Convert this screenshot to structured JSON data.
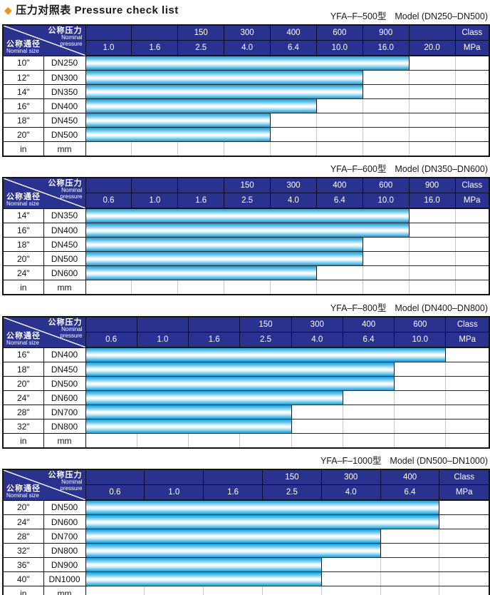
{
  "page_title": {
    "diamond": "◆",
    "cn": "压力对照表",
    "en": "Pressure check list"
  },
  "colors": {
    "header_bg": "#2a3290",
    "header_text": "#ffffff",
    "bar_cyan": "#1d9fd6",
    "bar_highlight": "#ffffff",
    "diamond_accent": "#f39019",
    "border_dark": "#141414",
    "grid_light": "#c9c9c9"
  },
  "corner": {
    "pressure_cn": "公称压力",
    "pressure_en1": "Nominal",
    "pressure_en2": "pressure",
    "size_cn": "公称通径",
    "size_en": "Nominal size"
  },
  "tables": [
    {
      "model_cn": "YFA–F–500型",
      "model_en": "Model (DN250–DN500)",
      "class_row": [
        "",
        "",
        "150",
        "300",
        "400",
        "600",
        "900",
        "",
        "Class"
      ],
      "mpa_row": [
        "1.0",
        "1.6",
        "2.5",
        "4.0",
        "6.4",
        "10.0",
        "16.0",
        "20.0",
        "MPa"
      ],
      "rows": [
        {
          "inch": "10\"",
          "dn": "DN250",
          "max_mpa": "16.0"
        },
        {
          "inch": "12\"",
          "dn": "DN300",
          "max_mpa": "10.0"
        },
        {
          "inch": "14\"",
          "dn": "DN350",
          "max_mpa": "10.0"
        },
        {
          "inch": "16\"",
          "dn": "DN400",
          "max_mpa": "6.4"
        },
        {
          "inch": "18\"",
          "dn": "DN450",
          "max_mpa": "4.0"
        },
        {
          "inch": "20\"",
          "dn": "DN500",
          "max_mpa": "4.0"
        }
      ],
      "footer": {
        "inch_unit": "in",
        "dn_unit": "mm"
      }
    },
    {
      "model_cn": "YFA–F–600型",
      "model_en": "Model (DN350–DN600)",
      "class_row": [
        "",
        "",
        "",
        "150",
        "300",
        "400",
        "600",
        "900",
        "Class"
      ],
      "mpa_row": [
        "0.6",
        "1.0",
        "1.6",
        "2.5",
        "4.0",
        "6.4",
        "10.0",
        "16.0",
        "MPa"
      ],
      "rows": [
        {
          "inch": "14\"",
          "dn": "DN350",
          "max_mpa": "10.0"
        },
        {
          "inch": "16\"",
          "dn": "DN400",
          "max_mpa": "10.0"
        },
        {
          "inch": "18\"",
          "dn": "DN450",
          "max_mpa": "6.4"
        },
        {
          "inch": "20\"",
          "dn": "DN500",
          "max_mpa": "6.4"
        },
        {
          "inch": "24\"",
          "dn": "DN600",
          "max_mpa": "4.0"
        }
      ],
      "footer": {
        "inch_unit": "in",
        "dn_unit": "mm"
      }
    },
    {
      "model_cn": "YFA–F–800型",
      "model_en": "Model (DN400–DN800)",
      "class_row": [
        "",
        "",
        "",
        "150",
        "300",
        "400",
        "600",
        "Class"
      ],
      "mpa_row": [
        "0.6",
        "1.0",
        "1.6",
        "2.5",
        "4.0",
        "6.4",
        "10.0",
        "MPa"
      ],
      "rows": [
        {
          "inch": "16\"",
          "dn": "DN400",
          "max_mpa": "10.0"
        },
        {
          "inch": "18\"",
          "dn": "DN450",
          "max_mpa": "6.4"
        },
        {
          "inch": "20\"",
          "dn": "DN500",
          "max_mpa": "6.4"
        },
        {
          "inch": "24\"",
          "dn": "DN600",
          "max_mpa": "4.0"
        },
        {
          "inch": "28\"",
          "dn": "DN700",
          "max_mpa": "2.5"
        },
        {
          "inch": "32\"",
          "dn": "DN800",
          "max_mpa": "2.5"
        }
      ],
      "footer": {
        "inch_unit": "in",
        "dn_unit": "mm"
      }
    },
    {
      "model_cn": "YFA–F–1000型",
      "model_en": "Model (DN500–DN1000)",
      "class_row": [
        "",
        "",
        "",
        "150",
        "300",
        "400",
        "Class"
      ],
      "mpa_row": [
        "0.6",
        "1.0",
        "1.6",
        "2.5",
        "4.0",
        "6.4",
        "MPa"
      ],
      "rows": [
        {
          "inch": "20\"",
          "dn": "DN500",
          "max_mpa": "6.4"
        },
        {
          "inch": "24\"",
          "dn": "DN600",
          "max_mpa": "6.4"
        },
        {
          "inch": "28\"",
          "dn": "DN700",
          "max_mpa": "4.0"
        },
        {
          "inch": "32\"",
          "dn": "DN800",
          "max_mpa": "4.0"
        },
        {
          "inch": "36\"",
          "dn": "DN900",
          "max_mpa": "2.5"
        },
        {
          "inch": "40\"",
          "dn": "DN1000",
          "max_mpa": "2.5"
        }
      ],
      "footer": {
        "inch_unit": "in",
        "dn_unit": "mm"
      }
    }
  ]
}
